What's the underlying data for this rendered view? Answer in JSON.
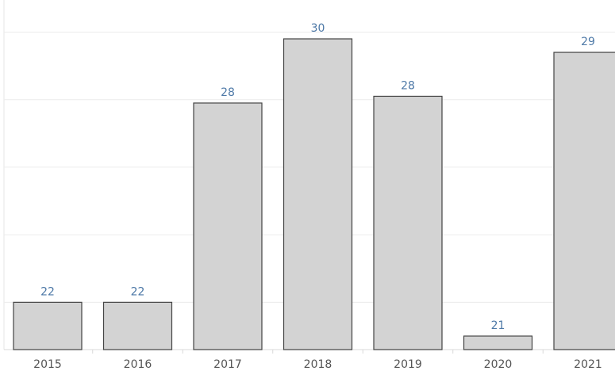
{
  "chart_data": {
    "type": "bar",
    "categories": [
      "2015",
      "2016",
      "2017",
      "2018",
      "2019",
      "2020",
      "2021"
    ],
    "values": [
      22,
      22,
      27.9,
      29.8,
      28.1,
      21,
      29.4
    ],
    "value_labels": [
      "22",
      "22",
      "28",
      "30",
      "28",
      "21",
      "29"
    ],
    "color": "#d3d3d3",
    "label_color": "#4e79a7",
    "ylim": [
      20.6,
      30.95
    ],
    "yticks": [
      22,
      24,
      26,
      28,
      30
    ],
    "grid": true
  }
}
